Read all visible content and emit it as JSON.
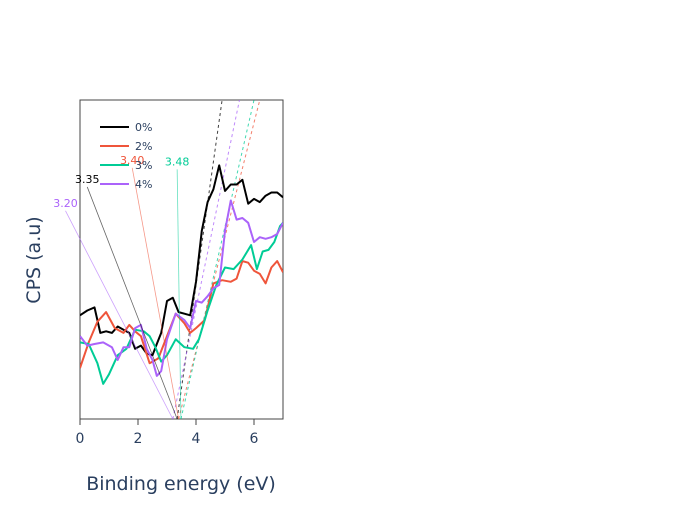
{
  "chart_data": {
    "type": "line",
    "title": "",
    "xlabel": "Binding energy (eV)",
    "ylabel": "CPS (a.u)",
    "xlim": [
      0,
      7
    ],
    "ylim": [
      0,
      1
    ],
    "x_ticks": [
      0,
      2,
      4,
      6
    ],
    "grid": false,
    "legend_position": "top-left",
    "series": [
      {
        "name": "0%",
        "color": "#000000",
        "x": [
          0,
          0.25,
          0.5,
          0.7,
          0.9,
          1.1,
          1.3,
          1.5,
          1.7,
          1.9,
          2.1,
          2.3,
          2.5,
          2.65,
          2.8,
          3.0,
          3.2,
          3.4,
          3.6,
          3.8,
          4.0,
          4.2,
          4.4,
          4.6,
          4.8,
          5.0,
          5.2,
          5.4,
          5.6,
          5.8,
          6.0,
          6.2,
          6.4,
          6.6,
          6.8,
          7.0
        ],
        "y": [
          0.325,
          0.34,
          0.35,
          0.27,
          0.275,
          0.27,
          0.29,
          0.28,
          0.27,
          0.22,
          0.23,
          0.205,
          0.2,
          0.235,
          0.27,
          0.37,
          0.38,
          0.335,
          0.33,
          0.325,
          0.43,
          0.59,
          0.68,
          0.72,
          0.795,
          0.715,
          0.735,
          0.735,
          0.75,
          0.675,
          0.69,
          0.68,
          0.7,
          0.71,
          0.71,
          0.695
        ]
      },
      {
        "name": "2%",
        "color": "#ef553b",
        "x": [
          0,
          0.3,
          0.6,
          0.9,
          1.2,
          1.5,
          1.7,
          1.9,
          2.1,
          2.4,
          2.7,
          3.0,
          3.3,
          3.6,
          3.8,
          4.0,
          4.3,
          4.6,
          4.9,
          5.2,
          5.4,
          5.6,
          5.8,
          6.0,
          6.2,
          6.4,
          6.6,
          6.8,
          7.0
        ],
        "y": [
          0.16,
          0.24,
          0.305,
          0.335,
          0.285,
          0.27,
          0.295,
          0.275,
          0.26,
          0.175,
          0.19,
          0.26,
          0.33,
          0.3,
          0.27,
          0.285,
          0.31,
          0.425,
          0.435,
          0.43,
          0.44,
          0.495,
          0.49,
          0.465,
          0.455,
          0.425,
          0.475,
          0.495,
          0.46
        ]
      },
      {
        "name": "3%",
        "color": "#00cc96",
        "x": [
          0,
          0.3,
          0.6,
          0.8,
          1.0,
          1.3,
          1.6,
          1.9,
          2.2,
          2.4,
          2.6,
          2.8,
          3.0,
          3.3,
          3.6,
          3.9,
          4.1,
          4.4,
          4.7,
          5.0,
          5.3,
          5.6,
          5.9,
          6.1,
          6.3,
          6.5,
          6.7,
          6.9,
          7.0
        ],
        "y": [
          0.24,
          0.235,
          0.175,
          0.11,
          0.14,
          0.2,
          0.22,
          0.28,
          0.275,
          0.26,
          0.225,
          0.18,
          0.2,
          0.25,
          0.225,
          0.22,
          0.25,
          0.34,
          0.42,
          0.475,
          0.47,
          0.5,
          0.545,
          0.47,
          0.525,
          0.53,
          0.555,
          0.605,
          0.615
        ]
      },
      {
        "name": "4%",
        "color": "#ab63fa",
        "x": [
          0,
          0.25,
          0.5,
          0.8,
          1.1,
          1.3,
          1.5,
          1.7,
          1.9,
          2.1,
          2.3,
          2.5,
          2.65,
          2.8,
          3.0,
          3.3,
          3.6,
          3.8,
          4.0,
          4.2,
          4.4,
          4.6,
          4.8,
          5.0,
          5.2,
          5.4,
          5.6,
          5.8,
          6.0,
          6.2,
          6.4,
          6.6,
          6.8,
          7.0
        ],
        "y": [
          0.26,
          0.23,
          0.235,
          0.24,
          0.225,
          0.185,
          0.225,
          0.225,
          0.285,
          0.295,
          0.22,
          0.185,
          0.135,
          0.15,
          0.25,
          0.33,
          0.31,
          0.285,
          0.37,
          0.365,
          0.385,
          0.41,
          0.42,
          0.59,
          0.685,
          0.625,
          0.63,
          0.615,
          0.555,
          0.57,
          0.565,
          0.57,
          0.58,
          0.615
        ]
      }
    ],
    "fit_lines": [
      {
        "series": "0%",
        "color": "#000000",
        "x_intercept": 3.35,
        "x_top": 4.9,
        "label": "3.35",
        "label_color": "#000000",
        "label_x": 0.25,
        "label_y": 0.74
      },
      {
        "series": "2%",
        "color": "#ef553b",
        "x_intercept": 3.4,
        "x_top": 6.2,
        "label": "3.40",
        "label_color": "#ef553b",
        "label_x": 1.8,
        "label_y": 0.8
      },
      {
        "series": "3%",
        "color": "#00cc96",
        "x_intercept": 3.48,
        "x_top": 6.0,
        "label": "3.48",
        "label_color": "#00cc96",
        "label_x": 3.35,
        "label_y": 0.795
      },
      {
        "series": "4%",
        "color": "#ab63fa",
        "x_intercept": 3.2,
        "x_top": 5.5,
        "label": "3.20",
        "label_color": "#ab63fa",
        "label_x": -0.5,
        "label_y": 0.665
      }
    ]
  }
}
